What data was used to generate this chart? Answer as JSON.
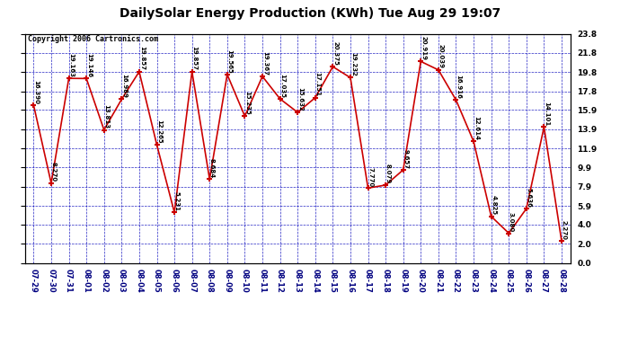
{
  "title": "DailySolar Energy Production (KWh) Tue Aug 29 19:07",
  "copyright": "Copyright 2006 Cartronics.com",
  "dates": [
    "07-29",
    "07-30",
    "07-31",
    "08-01",
    "08-02",
    "08-03",
    "08-04",
    "08-05",
    "08-06",
    "08-07",
    "08-08",
    "08-09",
    "08-10",
    "08-11",
    "08-12",
    "08-13",
    "08-14",
    "08-15",
    "08-16",
    "08-17",
    "08-18",
    "08-19",
    "08-20",
    "08-21",
    "08-22",
    "08-23",
    "08-24",
    "08-25",
    "08-26",
    "08-27",
    "08-28"
  ],
  "values": [
    16.39,
    8.27,
    19.163,
    19.146,
    13.813,
    16.989,
    19.857,
    12.265,
    5.231,
    19.857,
    8.684,
    19.565,
    15.235,
    19.367,
    17.035,
    15.632,
    17.151,
    20.375,
    19.232,
    7.77,
    8.079,
    9.657,
    20.919,
    20.039,
    16.916,
    12.614,
    4.825,
    3.08,
    5.636,
    14.101,
    2.27
  ],
  "ylim": [
    0.0,
    23.8
  ],
  "yticks": [
    0.0,
    2.0,
    4.0,
    5.9,
    7.9,
    9.9,
    11.9,
    13.9,
    15.9,
    17.8,
    19.8,
    21.8,
    23.8
  ],
  "line_color": "#cc0000",
  "grid_color": "#0000bb",
  "bg_color": "#ffffff",
  "title_fontsize": 10,
  "copyright_fontsize": 6,
  "label_fontsize": 5.0,
  "xtick_fontsize": 6,
  "ytick_fontsize": 6.5
}
